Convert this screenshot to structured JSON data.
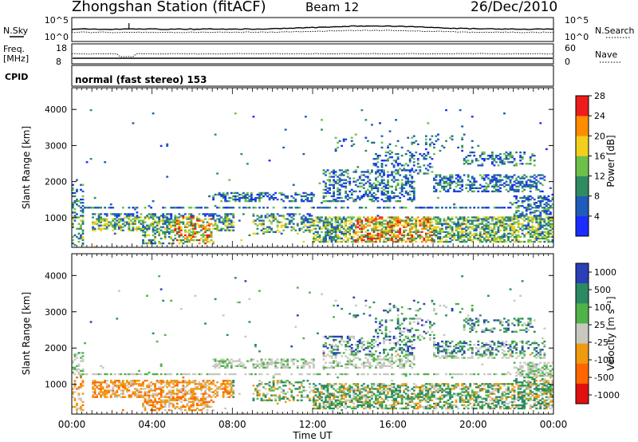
{
  "header": {
    "title": "Zhongshan Station (fitACF)",
    "beam": "Beam 12",
    "date": "26/Dec/2010"
  },
  "status_panels": {
    "nsky_label": "N.Sky",
    "nsearch_label": "N.Search",
    "noise_ticks": [
      "10^5",
      "10^0"
    ],
    "freq_label_line1": "Freq.",
    "freq_label_line2": "[MHz]",
    "freq_ticks": [
      "18",
      "8"
    ],
    "nave_label": "Nave",
    "nave_ticks": [
      "60",
      "0"
    ],
    "cpid_label": "CPID",
    "cpid_text": "normal (fast stereo) 153"
  },
  "chart_data": [
    {
      "type": "heatmap",
      "panel": "power",
      "ylabel": "Slant Range [km]",
      "xlabel": "",
      "yticks": [
        1000,
        2000,
        3000,
        4000
      ],
      "ylim": [
        180,
        4600
      ],
      "colorbar_label": "Power [dB]",
      "colorbar_ticks": [
        "4",
        "8",
        "12",
        "16",
        "20",
        "24",
        "28"
      ],
      "colorbar_colors": [
        "#1a2cff",
        "#1f5bb8",
        "#2f8c62",
        "#6cc04a",
        "#f2cf1c",
        "#ff8c00",
        "#ee1c1c"
      ]
    },
    {
      "type": "heatmap",
      "panel": "velocity",
      "ylabel": "Slant Range [km]",
      "xlabel": "Time UT",
      "yticks": [
        1000,
        2000,
        3000,
        4000
      ],
      "ylim": [
        180,
        4600
      ],
      "colorbar_label": "Velocity [m s⁻¹]",
      "colorbar_ticks": [
        "1000",
        "500",
        "100",
        "25",
        "-25",
        "-100",
        "-500",
        "-1000"
      ],
      "colorbar_colors": [
        "#2a3fb8",
        "#2b8a62",
        "#4fb34a",
        "#c8c8c0",
        "#f09a10",
        "#ff6600",
        "#e01010"
      ]
    }
  ],
  "time_axis": {
    "ticks": [
      "00:00",
      "04:00",
      "08:00",
      "12:00",
      "16:00",
      "20:00",
      "00:00"
    ],
    "label": "Time UT"
  }
}
